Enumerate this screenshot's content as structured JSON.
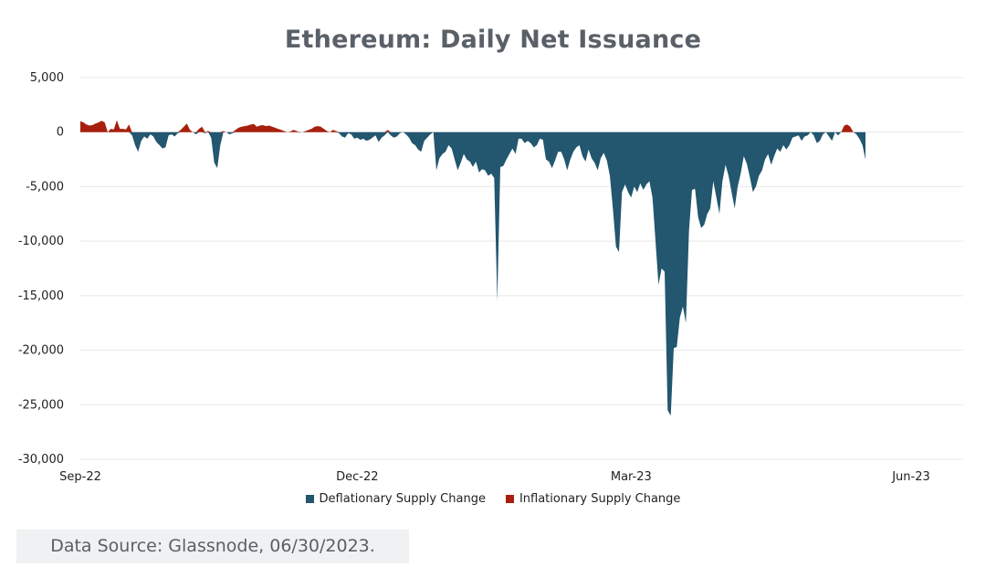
{
  "title": "Ethereum: Daily Net Issuance",
  "source": "Data Source: Glassnode, 06/30/2023.",
  "colors": {
    "deflationary": "#23566f",
    "inflationary": "#a8200d",
    "grid": "#e8e8e8",
    "title": "#5a6068"
  },
  "chart_data": {
    "type": "area",
    "title": "Ethereum: Daily Net Issuance",
    "xlabel": "",
    "ylabel": "",
    "ylim": [
      -30000,
      5000
    ],
    "yticks": [
      5000,
      0,
      -5000,
      -10000,
      -15000,
      -20000,
      -25000,
      -30000
    ],
    "ytick_labels": [
      "5,000",
      "0",
      "-5,000",
      "-10,000",
      "-15,000",
      "-20,000",
      "-25,000",
      "-30,000"
    ],
    "xticks": [
      "Sep-22",
      "Dec-22",
      "Mar-23",
      "Jun-23"
    ],
    "xtick_days": [
      0,
      91,
      181,
      273
    ],
    "x_start": "2022-09-15",
    "grid": true,
    "legend_position": "bottom",
    "series": [
      {
        "name": "Deflationary Supply Change",
        "color": "#23566f",
        "sign": "negative"
      },
      {
        "name": "Inflationary Supply Change",
        "color": "#a8200d",
        "sign": "positive"
      }
    ],
    "values": [
      1000,
      900,
      700,
      600,
      650,
      800,
      900,
      1050,
      900,
      0,
      300,
      250,
      1100,
      300,
      300,
      250,
      700,
      -300,
      -1200,
      -1800,
      -800,
      -400,
      -600,
      -200,
      -400,
      -900,
      -1200,
      -1500,
      -1400,
      -300,
      -200,
      -400,
      -100,
      200,
      500,
      800,
      200,
      0,
      -200,
      300,
      500,
      -100,
      100,
      -500,
      -2800,
      -3300,
      -1200,
      100,
      0,
      -200,
      -100,
      200,
      400,
      500,
      550,
      600,
      700,
      750,
      500,
      600,
      650,
      550,
      600,
      500,
      400,
      300,
      200,
      100,
      0,
      50,
      200,
      100,
      -50,
      0,
      100,
      200,
      300,
      500,
      550,
      500,
      300,
      100,
      0,
      200,
      100,
      -100,
      -400,
      -500,
      -100,
      -200,
      -600,
      -500,
      -700,
      -600,
      -800,
      -700,
      -500,
      -300,
      -900,
      -500,
      -300,
      200,
      -300,
      -500,
      -400,
      -100,
      0,
      -200,
      -500,
      -1000,
      -1200,
      -1600,
      -1800,
      -800,
      -500,
      -200,
      0,
      -3500,
      -2400,
      -2000,
      -1800,
      -1200,
      -1500,
      -2500,
      -3500,
      -2800,
      -2000,
      -2500,
      -2700,
      -3200,
      -2700,
      -3700,
      -3400,
      -3500,
      -4000,
      -3800,
      -4200,
      -15500,
      -3200,
      -3100,
      -2500,
      -2000,
      -1500,
      -2000,
      -600,
      -600,
      -1000,
      -800,
      -1000,
      -1400,
      -1200,
      -600,
      -700,
      -2500,
      -2700,
      -3300,
      -2600,
      -1800,
      -1800,
      -2500,
      -3500,
      -2500,
      -1800,
      -1400,
      -1200,
      -2200,
      -2700,
      -1600,
      -2400,
      -2800,
      -3500,
      -2400,
      -1900,
      -2600,
      -4000,
      -7000,
      -10500,
      -11000,
      -5500,
      -4800,
      -5500,
      -6000,
      -5000,
      -5500,
      -4700,
      -5300,
      -4800,
      -4500,
      -6000,
      -10000,
      -14000,
      -12500,
      -12800,
      -25500,
      -26000,
      -19800,
      -19700,
      -17000,
      -16000,
      -17500,
      -9000,
      -5300,
      -5200,
      -7800,
      -8800,
      -8500,
      -7500,
      -7000,
      -4500,
      -6000,
      -7500,
      -4500,
      -3000,
      -4000,
      -5500,
      -7000,
      -5000,
      -3800,
      -2200,
      -2900,
      -4100,
      -5500,
      -5000,
      -4000,
      -3500,
      -2500,
      -2000,
      -3000,
      -2200,
      -1500,
      -1800,
      -1200,
      -1600,
      -1200,
      -500,
      -400,
      -300,
      -800,
      -400,
      -300,
      0,
      -300,
      -1000,
      -800,
      -200,
      0,
      -400,
      -800,
      0,
      -300,
      0,
      600,
      700,
      500,
      0,
      -200,
      -600,
      -1200,
      -2500
    ],
    "value_units": "ETH per day"
  },
  "legend": [
    {
      "label": "Deflationary Supply Change",
      "color": "#23566f"
    },
    {
      "label": "Inflationary Supply Change",
      "color": "#a8200d"
    }
  ]
}
